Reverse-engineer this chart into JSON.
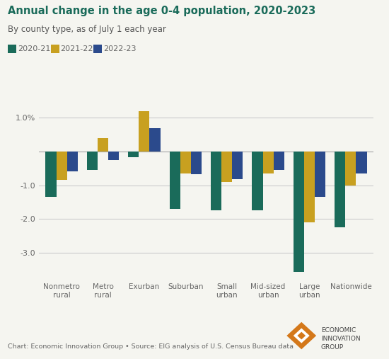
{
  "title": "Annual change in the age 0-4 population, 2020-2023",
  "subtitle": "By county type, as of July 1 each year",
  "categories": [
    "Nonmetro\nrural",
    "Metro\nrural",
    "Exurban",
    "Suburban",
    "Small\nurban",
    "Mid-sized\nurban",
    "Large\nurban",
    "Nationwide"
  ],
  "series": {
    "2020-21": [
      -1.35,
      -0.55,
      -0.18,
      -1.7,
      -1.75,
      -1.75,
      -3.55,
      -2.25
    ],
    "2021-22": [
      -0.85,
      0.4,
      1.18,
      -0.65,
      -0.9,
      -0.65,
      -2.1,
      -1.0
    ],
    "2022-23": [
      -0.6,
      -0.25,
      0.68,
      -0.68,
      -0.82,
      -0.55,
      -1.35,
      -0.65
    ]
  },
  "colors": {
    "2020-21": "#1a6b5a",
    "2021-22": "#c8a020",
    "2022-23": "#2b4a8c"
  },
  "ylim": [
    -3.8,
    1.5
  ],
  "yticks": [
    1.0,
    0.0,
    -1.0,
    -2.0,
    -3.0
  ],
  "ytick_labels": [
    "1.0%",
    "",
    "-1.0",
    "-2.0",
    "-3.0"
  ],
  "bar_width": 0.26,
  "footnote": "Chart: Economic Innovation Group • Source: EIG analysis of U.S. Census Bureau data",
  "bg_color": "#f5f5f0",
  "grid_color": "#cccccc",
  "title_color": "#1a6b5a",
  "subtitle_color": "#555555",
  "axis_label_color": "#666666",
  "legend_labels": [
    "2020-21",
    "2021-22",
    "2022-23"
  ]
}
